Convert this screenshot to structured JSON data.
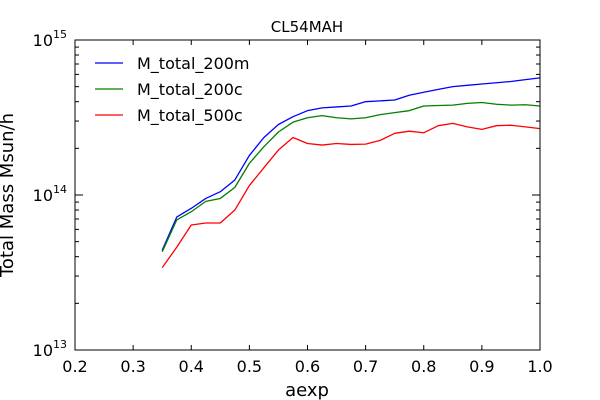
{
  "chart_data": {
    "type": "line",
    "title": "CL54MAH",
    "xlabel": "aexp",
    "ylabel": "Total Mass Msun/h",
    "xlim": [
      0.2,
      1.0
    ],
    "ylim": [
      10000000000000.0,
      1000000000000000.0
    ],
    "yscale": "log",
    "xticks": [
      {
        "value": 0.2,
        "label": "0.2"
      },
      {
        "value": 0.3,
        "label": "0.3"
      },
      {
        "value": 0.4,
        "label": "0.4"
      },
      {
        "value": 0.5,
        "label": "0.5"
      },
      {
        "value": 0.6,
        "label": "0.6"
      },
      {
        "value": 0.7,
        "label": "0.7"
      },
      {
        "value": 0.8,
        "label": "0.8"
      },
      {
        "value": 0.9,
        "label": "0.9"
      },
      {
        "value": 1.0,
        "label": "1.0"
      }
    ],
    "yticks": [
      {
        "value": 10000000000000.0,
        "base": "10",
        "exp": "13"
      },
      {
        "value": 100000000000000.0,
        "base": "10",
        "exp": "14"
      },
      {
        "value": 1000000000000000.0,
        "base": "10",
        "exp": "15"
      }
    ],
    "legend_position": "top-left",
    "series": [
      {
        "name": "M_total_200m",
        "color": "#0000ff",
        "x": [
          0.35,
          0.375,
          0.4,
          0.425,
          0.45,
          0.475,
          0.5,
          0.525,
          0.55,
          0.575,
          0.6,
          0.625,
          0.65,
          0.675,
          0.7,
          0.725,
          0.75,
          0.775,
          0.8,
          0.825,
          0.85,
          0.875,
          0.9,
          0.925,
          0.95,
          0.975,
          1.0
        ],
        "values": [
          44000000000000.0,
          72000000000000.0,
          82000000000000.0,
          95000000000000.0,
          105000000000000.0,
          125000000000000.0,
          180000000000000.0,
          235000000000000.0,
          285000000000000.0,
          320000000000000.0,
          350000000000000.0,
          365000000000000.0,
          370000000000000.0,
          375000000000000.0,
          400000000000000.0,
          405000000000000.0,
          410000000000000.0,
          440000000000000.0,
          460000000000000.0,
          480000000000000.0,
          500000000000000.0,
          510000000000000.0,
          520000000000000.0,
          530000000000000.0,
          540000000000000.0,
          555000000000000.0,
          570000000000000.0
        ]
      },
      {
        "name": "M_total_200c",
        "color": "#008000",
        "x": [
          0.35,
          0.375,
          0.4,
          0.425,
          0.45,
          0.475,
          0.5,
          0.525,
          0.55,
          0.575,
          0.6,
          0.625,
          0.65,
          0.675,
          0.7,
          0.725,
          0.75,
          0.775,
          0.8,
          0.825,
          0.85,
          0.875,
          0.9,
          0.925,
          0.95,
          0.975,
          1.0
        ],
        "values": [
          43000000000000.0,
          69000000000000.0,
          78000000000000.0,
          91000000000000.0,
          95000000000000.0,
          112000000000000.0,
          160000000000000.0,
          205000000000000.0,
          255000000000000.0,
          295000000000000.0,
          315000000000000.0,
          325000000000000.0,
          315000000000000.0,
          310000000000000.0,
          315000000000000.0,
          330000000000000.0,
          340000000000000.0,
          350000000000000.0,
          375000000000000.0,
          378000000000000.0,
          380000000000000.0,
          390000000000000.0,
          395000000000000.0,
          385000000000000.0,
          380000000000000.0,
          382000000000000.0,
          375000000000000.0
        ]
      },
      {
        "name": "M_total_500c",
        "color": "#ff0000",
        "x": [
          0.35,
          0.375,
          0.4,
          0.425,
          0.45,
          0.475,
          0.5,
          0.525,
          0.55,
          0.575,
          0.6,
          0.625,
          0.65,
          0.675,
          0.7,
          0.725,
          0.75,
          0.775,
          0.8,
          0.825,
          0.85,
          0.875,
          0.9,
          0.925,
          0.95,
          0.975,
          1.0
        ],
        "values": [
          34000000000000.0,
          46000000000000.0,
          64000000000000.0,
          66000000000000.0,
          66000000000000.0,
          80000000000000.0,
          115000000000000.0,
          150000000000000.0,
          195000000000000.0,
          235000000000000.0,
          215000000000000.0,
          210000000000000.0,
          215000000000000.0,
          212000000000000.0,
          213000000000000.0,
          225000000000000.0,
          250000000000000.0,
          258000000000000.0,
          252000000000000.0,
          280000000000000.0,
          290000000000000.0,
          275000000000000.0,
          265000000000000.0,
          280000000000000.0,
          282000000000000.0,
          275000000000000.0,
          268000000000000.0
        ]
      }
    ]
  }
}
